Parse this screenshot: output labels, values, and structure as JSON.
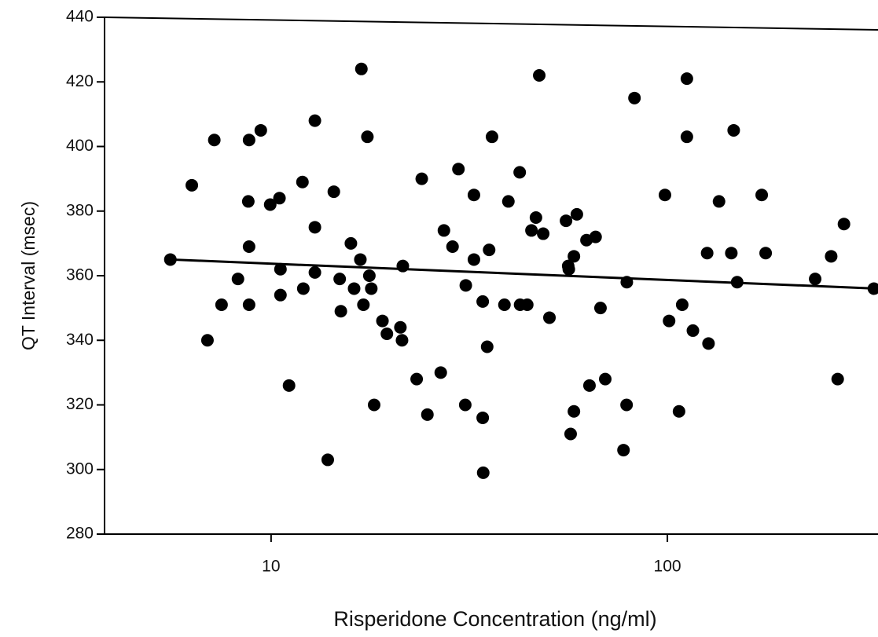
{
  "chart_data": {
    "type": "scatter",
    "x_label": "Risperidone Concentration (ng/ml)",
    "y_label": "QT Interval (msec)",
    "x_log": true,
    "xlim": [
      3.8,
      340
    ],
    "ylim": [
      280,
      440
    ],
    "xticks": [
      10,
      100
    ],
    "yticks": [
      280,
      300,
      320,
      340,
      360,
      380,
      400,
      420,
      440
    ],
    "color": "#000000",
    "points": {
      "x": [
        5.57,
        6.31,
        7.19,
        6.91,
        7.5,
        8.25,
        8.8,
        8.76,
        8.8,
        8.8,
        9.42,
        9.95,
        10.5,
        10.56,
        10.56,
        11.1,
        12.0,
        12.06,
        12.9,
        12.9,
        12.9,
        13.9,
        14.4,
        14.9,
        15.0,
        15.9,
        16.2,
        16.8,
        16.9,
        17.1,
        17.5,
        17.7,
        17.9,
        18.2,
        19.1,
        19.6,
        21.2,
        21.4,
        21.5,
        23.3,
        24.0,
        24.8,
        26.8,
        27.3,
        28.7,
        29.7,
        30.9,
        31.0,
        32.5,
        32.5,
        34.2,
        34.2,
        34.3,
        35.1,
        35.5,
        36.1,
        38.8,
        39.7,
        42.4,
        42.5,
        44.3,
        45.4,
        46.6,
        47.5,
        48.6,
        50.4,
        55.5,
        56.2,
        56.4,
        57.0,
        58.1,
        58.1,
        59.1,
        62.5,
        63.6,
        65.9,
        67.8,
        69.7,
        77.5,
        78.9,
        79.0,
        82.6,
        98.6,
        101,
        107,
        109,
        112,
        112,
        116,
        126,
        127,
        135,
        145,
        147,
        150,
        173,
        177,
        236,
        259,
        269,
        279,
        332
      ],
      "y": [
        365,
        388,
        402,
        340,
        351,
        359,
        369,
        383,
        402,
        351,
        405,
        382,
        384,
        362,
        354,
        326,
        389,
        356,
        361,
        375,
        408,
        303,
        386,
        359,
        349,
        370,
        356,
        365,
        424,
        351,
        403,
        360,
        356,
        320,
        346,
        342,
        344,
        340,
        363,
        328,
        390,
        317,
        330,
        374,
        369,
        393,
        320,
        357,
        365,
        385,
        316,
        352,
        299,
        338,
        368,
        403,
        351,
        383,
        392,
        351,
        351,
        374,
        378,
        422,
        373,
        347,
        377,
        363,
        362,
        311,
        366,
        318,
        379,
        371,
        326,
        372,
        350,
        328,
        306,
        320,
        358,
        415,
        385,
        346,
        318,
        351,
        421,
        403,
        343,
        367,
        339,
        383,
        367,
        405,
        358,
        385,
        367,
        359,
        366,
        328,
        376,
        356
      ]
    },
    "trend_line": {
      "x": [
        5.6,
        340
      ],
      "y": [
        365,
        356
      ]
    }
  }
}
